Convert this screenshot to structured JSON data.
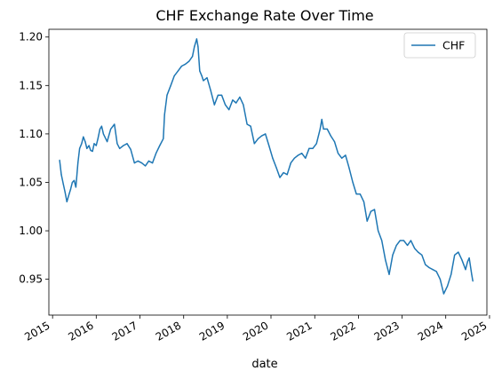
{
  "chart_data": {
    "type": "line",
    "title": "CHF Exchange Rate Over Time",
    "xlabel": "date",
    "ylabel": "",
    "xlim": [
      "2014-12-01",
      "2024-12-10"
    ],
    "ylim": [
      0.913,
      1.208
    ],
    "x_ticks": [
      "2015",
      "2016",
      "2017",
      "2018",
      "2019",
      "2020",
      "2021",
      "2022",
      "2023",
      "2024",
      "2025"
    ],
    "y_ticks": [
      "0.95",
      "1.00",
      "1.05",
      "1.10",
      "1.15",
      "1.20"
    ],
    "legend": {
      "position": "top-right",
      "entries": [
        "CHF"
      ]
    },
    "grid": false,
    "colors": {
      "line": "#1f77b4"
    },
    "series": [
      {
        "name": "CHF",
        "x": [
          "2015-03-01",
          "2015-03-15",
          "2015-04-01",
          "2015-04-15",
          "2015-05-01",
          "2015-05-15",
          "2015-06-01",
          "2015-06-15",
          "2015-07-01",
          "2015-07-15",
          "2015-08-01",
          "2015-08-15",
          "2015-09-01",
          "2015-09-15",
          "2015-10-01",
          "2015-10-15",
          "2015-11-01",
          "2015-11-15",
          "2015-12-01",
          "2015-12-15",
          "2016-01-01",
          "2016-01-15",
          "2016-02-01",
          "2016-02-15",
          "2016-03-01",
          "2016-04-01",
          "2016-05-01",
          "2016-06-01",
          "2016-06-24",
          "2016-07-15",
          "2016-08-15",
          "2016-09-15",
          "2016-10-15",
          "2016-11-15",
          "2016-12-15",
          "2017-01-15",
          "2017-02-15",
          "2017-03-15",
          "2017-04-15",
          "2017-05-15",
          "2017-06-15",
          "2017-07-15",
          "2017-07-25",
          "2017-08-15",
          "2017-09-15",
          "2017-10-15",
          "2017-11-15",
          "2017-12-15",
          "2018-01-15",
          "2018-02-15",
          "2018-03-15",
          "2018-04-01",
          "2018-04-20",
          "2018-05-01",
          "2018-05-15",
          "2018-06-01",
          "2018-06-15",
          "2018-07-15",
          "2018-08-15",
          "2018-09-15",
          "2018-10-15",
          "2018-11-15",
          "2018-12-15",
          "2019-01-15",
          "2019-02-15",
          "2019-03-15",
          "2019-04-15",
          "2019-05-15",
          "2019-06-15",
          "2019-07-15",
          "2019-08-15",
          "2019-09-15",
          "2019-10-15",
          "2019-11-15",
          "2019-12-15",
          "2020-01-15",
          "2020-02-15",
          "2020-03-15",
          "2020-04-15",
          "2020-05-15",
          "2020-06-15",
          "2020-07-15",
          "2020-08-15",
          "2020-09-15",
          "2020-10-15",
          "2020-11-15",
          "2020-12-15",
          "2021-01-15",
          "2021-02-15",
          "2021-03-01",
          "2021-03-15",
          "2021-04-15",
          "2021-05-15",
          "2021-06-15",
          "2021-07-15",
          "2021-08-15",
          "2021-09-15",
          "2021-10-15",
          "2021-11-15",
          "2021-12-15",
          "2022-01-15",
          "2022-02-15",
          "2022-03-01",
          "2022-03-15",
          "2022-04-15",
          "2022-05-15",
          "2022-06-15",
          "2022-07-15",
          "2022-08-15",
          "2022-09-15",
          "2022-10-15",
          "2022-11-15",
          "2022-12-15",
          "2023-01-15",
          "2023-02-15",
          "2023-03-15",
          "2023-04-15",
          "2023-05-15",
          "2023-06-15",
          "2023-07-15",
          "2023-08-15",
          "2023-09-15",
          "2023-10-15",
          "2023-11-15",
          "2023-12-15",
          "2024-01-15",
          "2024-02-15",
          "2024-03-15",
          "2024-04-15",
          "2024-05-15",
          "2024-06-15",
          "2024-07-01",
          "2024-07-15",
          "2024-08-05",
          "2024-08-15"
        ],
        "values": [
          1.073,
          1.058,
          1.048,
          1.04,
          1.03,
          1.036,
          1.043,
          1.05,
          1.052,
          1.045,
          1.07,
          1.085,
          1.09,
          1.097,
          1.092,
          1.085,
          1.088,
          1.083,
          1.082,
          1.09,
          1.088,
          1.095,
          1.105,
          1.108,
          1.1,
          1.092,
          1.105,
          1.11,
          1.09,
          1.085,
          1.088,
          1.09,
          1.084,
          1.07,
          1.072,
          1.07,
          1.067,
          1.072,
          1.07,
          1.08,
          1.088,
          1.095,
          1.12,
          1.14,
          1.15,
          1.16,
          1.165,
          1.17,
          1.172,
          1.175,
          1.18,
          1.19,
          1.198,
          1.19,
          1.165,
          1.16,
          1.155,
          1.158,
          1.145,
          1.13,
          1.14,
          1.14,
          1.13,
          1.125,
          1.135,
          1.132,
          1.138,
          1.13,
          1.11,
          1.108,
          1.09,
          1.095,
          1.098,
          1.1,
          1.088,
          1.075,
          1.065,
          1.055,
          1.06,
          1.058,
          1.07,
          1.075,
          1.078,
          1.08,
          1.075,
          1.085,
          1.085,
          1.09,
          1.105,
          1.115,
          1.105,
          1.105,
          1.098,
          1.092,
          1.08,
          1.075,
          1.078,
          1.065,
          1.05,
          1.038,
          1.038,
          1.03,
          1.02,
          1.01,
          1.02,
          1.022,
          1.0,
          0.99,
          0.97,
          0.955,
          0.975,
          0.985,
          0.99,
          0.99,
          0.985,
          0.99,
          0.982,
          0.978,
          0.975,
          0.965,
          0.962,
          0.96,
          0.958,
          0.95,
          0.935,
          0.943,
          0.955,
          0.975,
          0.978,
          0.97,
          0.96,
          0.968,
          0.972,
          0.955,
          0.948
        ]
      }
    ]
  }
}
